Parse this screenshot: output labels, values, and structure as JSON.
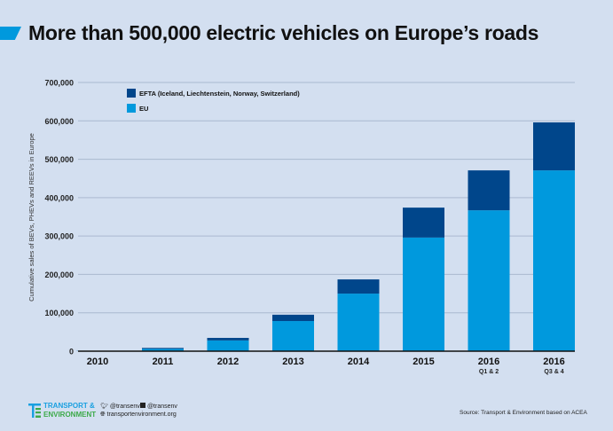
{
  "title": "More than 500,000 electric vehicles on Europe’s roads",
  "chart_data": {
    "type": "bar",
    "stacked": true,
    "categories": [
      "2010",
      "2011",
      "2012",
      "2013",
      "2014",
      "2015",
      "2016",
      "2016"
    ],
    "category_sublabels": [
      "",
      "",
      "",
      "",
      "",
      "",
      "Q1 & 2",
      "Q3 & 4"
    ],
    "series": [
      {
        "name": "EU",
        "color": "#0099dd",
        "values": [
          500,
          6000,
          28000,
          78500,
          150000,
          296000,
          367000,
          471000
        ]
      },
      {
        "name": "EFTA (Iceland, Liechtenstein, Norway, Switzerland)",
        "color": "#00468b",
        "values": [
          500,
          2500,
          6600,
          16500,
          37000,
          78000,
          104000,
          125000
        ]
      }
    ],
    "ylabel": "Cumulative sales of BEVs, PHEVs and REEVs in Europe",
    "xlabel": "",
    "ylim": [
      0,
      700000
    ],
    "yticks": [
      "0",
      "100,000",
      "200,000",
      "300,000",
      "400,000",
      "500,000",
      "600,000",
      "700,000"
    ],
    "grid": true,
    "legend": "top-left"
  },
  "footer": {
    "logo_line1": "TRANSPORT &",
    "logo_line2": "ENVIRONMENT",
    "twitter": "@transenv",
    "facebook": "@transenv",
    "website": "transportenvironment.org",
    "source": "Source: Transport & Environment based on ACEA"
  }
}
